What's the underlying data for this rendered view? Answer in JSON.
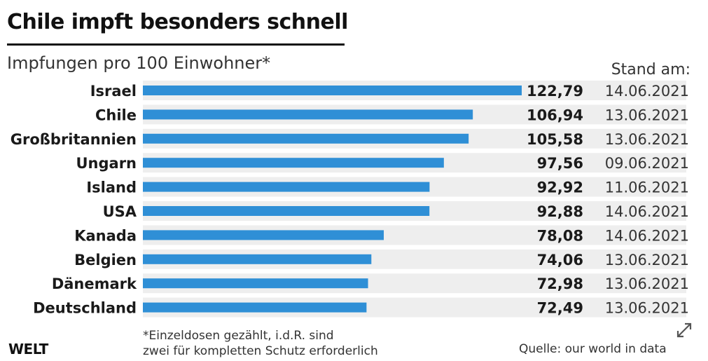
{
  "header": {
    "title": "Chile impft besonders schnell",
    "subtitle": "Impfungen pro 100 Einwohner*",
    "date_header": "Stand am:"
  },
  "chart_data": {
    "type": "bar",
    "orientation": "horizontal",
    "title": "Chile impft besonders schnell",
    "subtitle": "Impfungen pro 100 Einwohner*",
    "categories": [
      "Israel",
      "Chile",
      "Großbritannien",
      "Ungarn",
      "Island",
      "USA",
      "Kanada",
      "Belgien",
      "Dänemark",
      "Deutschland"
    ],
    "values": [
      122.79,
      106.94,
      105.58,
      97.56,
      92.92,
      92.88,
      78.08,
      74.06,
      72.98,
      72.49
    ],
    "value_labels": [
      "122,79",
      "106,94",
      "105,58",
      "97,56",
      "92,92",
      "92,88",
      "78,08",
      "74,06",
      "72,98",
      "72,49"
    ],
    "dates": [
      "14.06.2021",
      "13.06.2021",
      "13.06.2021",
      "09.06.2021",
      "11.06.2021",
      "14.06.2021",
      "14.06.2021",
      "13.06.2021",
      "13.06.2021",
      "13.06.2021"
    ],
    "xlim": [
      0,
      122.79
    ],
    "grid": false,
    "legend": "none",
    "colors": {
      "bar": "#2f8fd6",
      "track": "#eeeeee",
      "text": "#1a1a1a"
    }
  },
  "footer": {
    "footnote_line1": "*Einzeldosen gezählt, i.d.R. sind",
    "footnote_line2": "zwei für kompletten Schutz erforderlich",
    "brand": "WELT",
    "source": "Quelle: our world in data"
  },
  "icons": {
    "expand": "expand-icon"
  }
}
